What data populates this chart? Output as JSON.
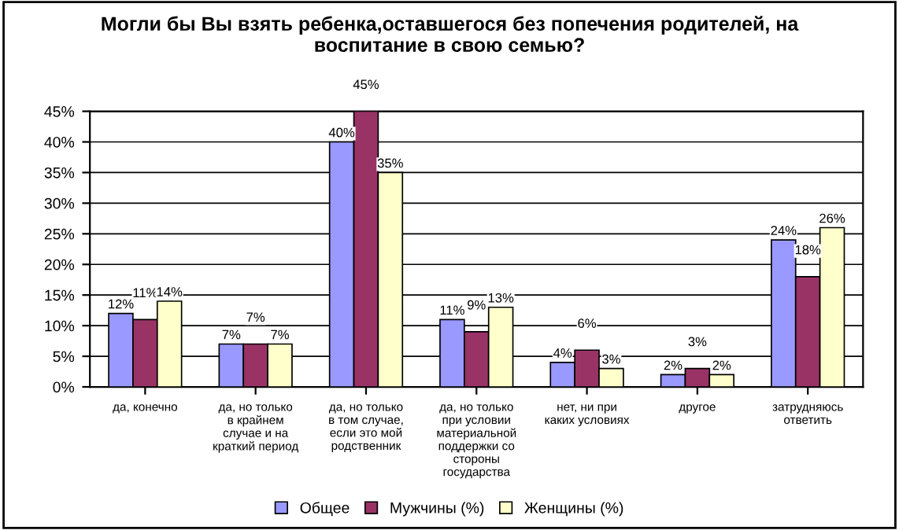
{
  "chart_data": {
    "type": "bar",
    "title": "Могли бы Вы взять ребенка,оставшегося без попечения родителей, на воспитание в свою семью?",
    "categories": [
      "да, конечно",
      "да, но только в крайнем случае и на краткий период",
      "да, но только в том случае, если это мой родственник",
      "да, но только при условии материальной поддержки со стороны государства",
      "нет, ни при каких условиях",
      "другое",
      "затрудняюсь ответить"
    ],
    "series": [
      {
        "name": "Общее",
        "color": "#9999ff",
        "values": [
          12,
          7,
          40,
          11,
          4,
          2,
          24
        ],
        "value_labels": [
          "12%",
          "7%",
          "40%",
          "11%",
          "4%",
          "2%",
          "24%"
        ]
      },
      {
        "name": "Мужчины (%)",
        "color": "#993366",
        "values": [
          11,
          7,
          45,
          9,
          6,
          3,
          18
        ],
        "value_labels": [
          "11%",
          "7%",
          "45%",
          "9%",
          "6%",
          "3%",
          "18%"
        ]
      },
      {
        "name": "Женщины (%)",
        "color": "#ffffcc",
        "values": [
          14,
          7,
          35,
          13,
          3,
          2,
          26
        ],
        "value_labels": [
          "14%",
          "7%",
          "35%",
          "13%",
          "3%",
          "2%",
          "26%"
        ]
      }
    ],
    "ylim": [
      0,
      45
    ],
    "yticks": [
      {
        "value": 0,
        "label": "0%"
      },
      {
        "value": 5,
        "label": "5%"
      },
      {
        "value": 10,
        "label": "10%"
      },
      {
        "value": 15,
        "label": "15%"
      },
      {
        "value": 20,
        "label": "20%"
      },
      {
        "value": 25,
        "label": "25%"
      },
      {
        "value": 30,
        "label": "30%"
      },
      {
        "value": 35,
        "label": "35%"
      },
      {
        "value": 40,
        "label": "40%"
      },
      {
        "value": 45,
        "label": "45%"
      }
    ],
    "grid": "y",
    "legend": "bottom"
  }
}
